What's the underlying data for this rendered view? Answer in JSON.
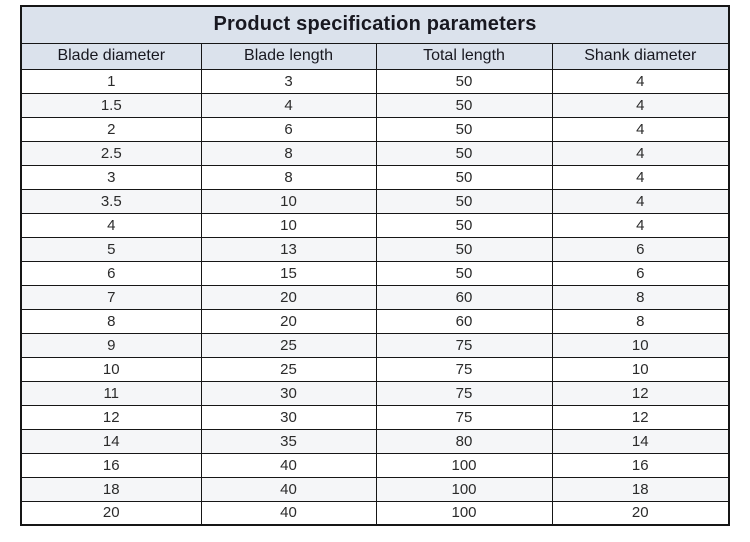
{
  "title": "Product specification parameters",
  "table": {
    "columns": [
      "Blade diameter",
      "Blade length",
      "Total length",
      "Shank diameter"
    ],
    "rows": [
      [
        "1",
        "3",
        "50",
        "4"
      ],
      [
        "1.5",
        "4",
        "50",
        "4"
      ],
      [
        "2",
        "6",
        "50",
        "4"
      ],
      [
        "2.5",
        "8",
        "50",
        "4"
      ],
      [
        "3",
        "8",
        "50",
        "4"
      ],
      [
        "3.5",
        "10",
        "50",
        "4"
      ],
      [
        "4",
        "10",
        "50",
        "4"
      ],
      [
        "5",
        "13",
        "50",
        "6"
      ],
      [
        "6",
        "15",
        "50",
        "6"
      ],
      [
        "7",
        "20",
        "60",
        "8"
      ],
      [
        "8",
        "20",
        "60",
        "8"
      ],
      [
        "9",
        "25",
        "75",
        "10"
      ],
      [
        "10",
        "25",
        "75",
        "10"
      ],
      [
        "11",
        "30",
        "75",
        "12"
      ],
      [
        "12",
        "30",
        "75",
        "12"
      ],
      [
        "14",
        "35",
        "80",
        "14"
      ],
      [
        "16",
        "40",
        "100",
        "16"
      ],
      [
        "18",
        "40",
        "100",
        "18"
      ],
      [
        "20",
        "40",
        "100",
        "20"
      ]
    ]
  },
  "colors": {
    "page_bg": "#ffffff",
    "header_bg": "#dbe2ec",
    "alt_row_bg": "#f5f6f8",
    "border": "#161616",
    "title_text": "#181820",
    "body_text": "#2b2b2b"
  }
}
